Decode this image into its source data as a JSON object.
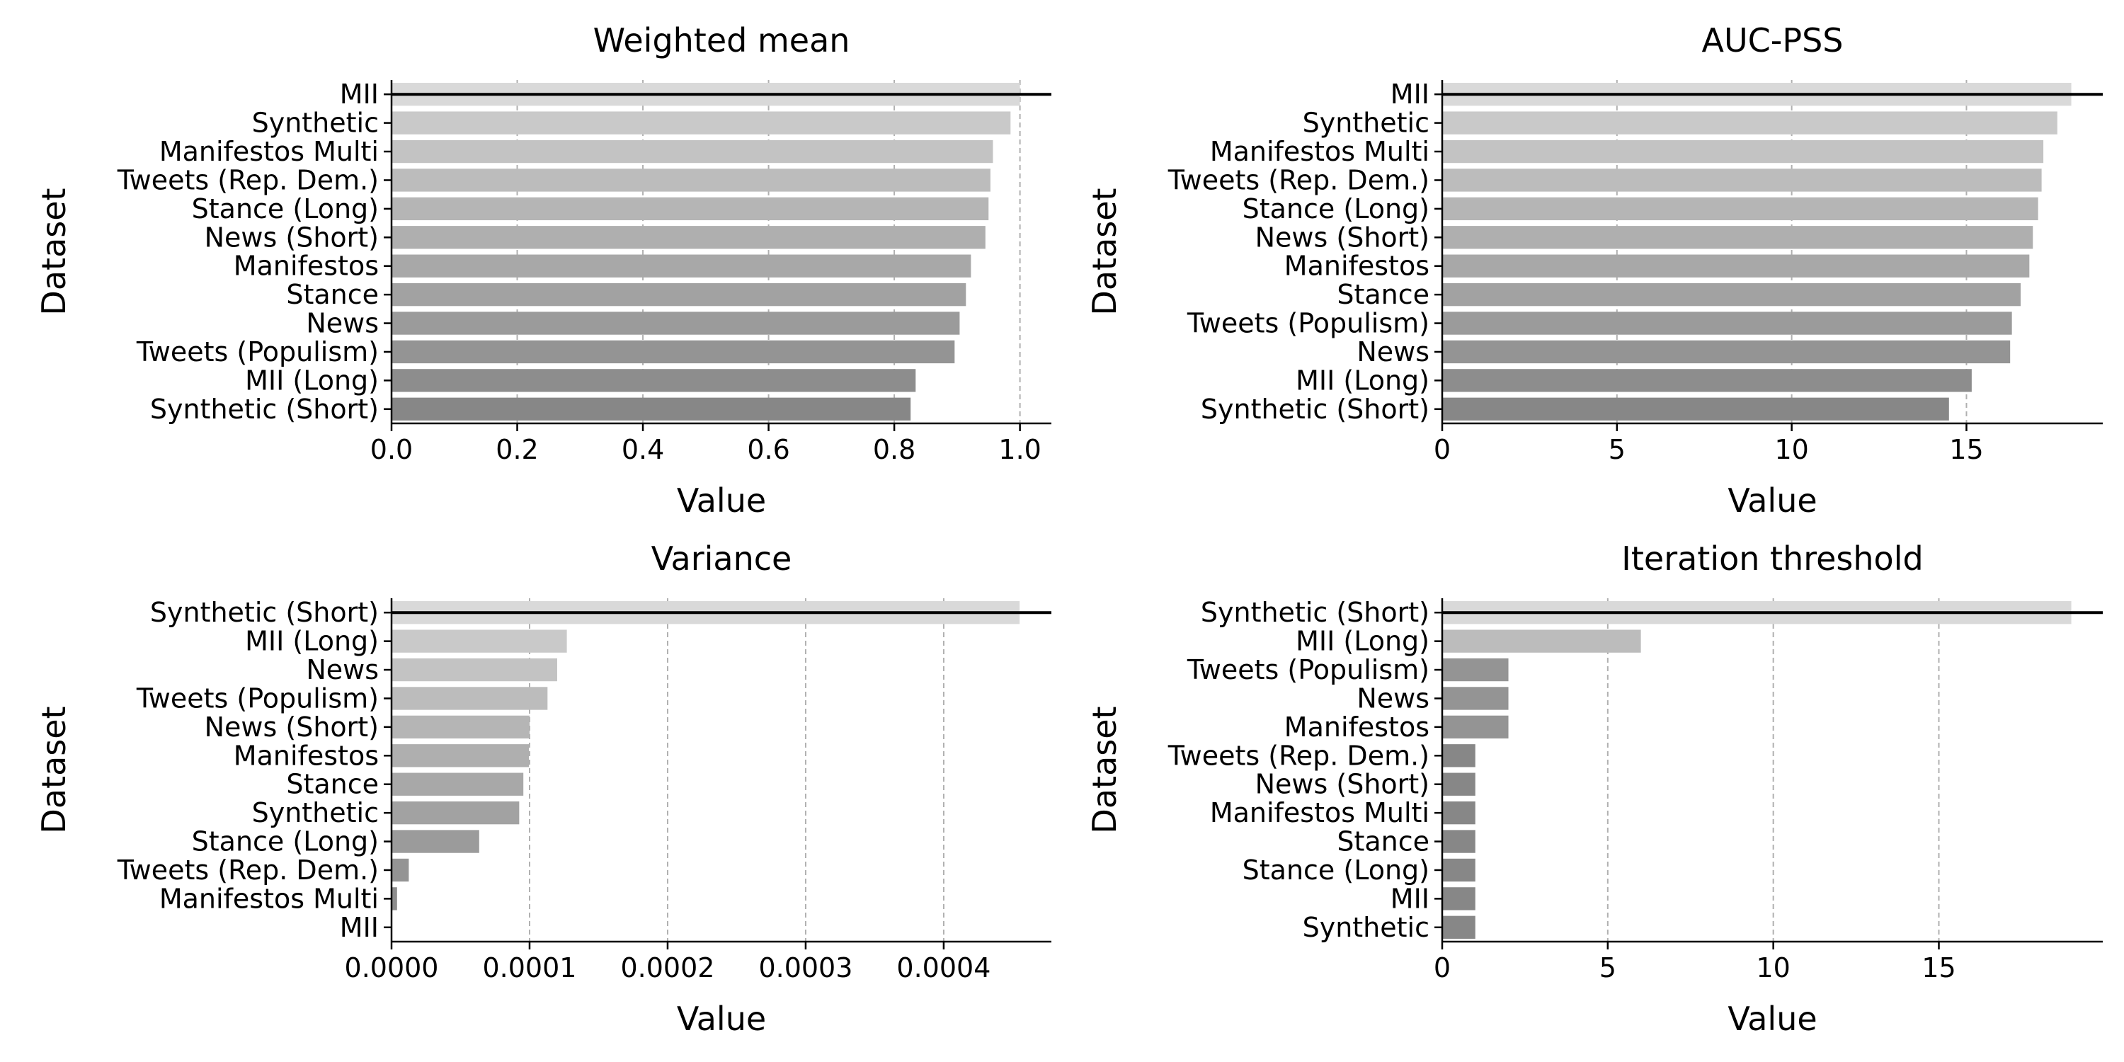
{
  "chart_data": [
    {
      "type": "bar",
      "orientation": "horizontal",
      "title": "Weighted mean",
      "xlabel": "Value",
      "ylabel": "Dataset",
      "categories": [
        "MII",
        "Synthetic",
        "Manifestos Multi",
        "Tweets (Rep. Dem.)",
        "Stance (Long)",
        "News (Short)",
        "Manifestos",
        "Stance",
        "News",
        "Tweets (Populism)",
        "MII (Long)",
        "Synthetic (Short)"
      ],
      "values": [
        1.0,
        0.985,
        0.957,
        0.953,
        0.95,
        0.945,
        0.922,
        0.914,
        0.904,
        0.896,
        0.834,
        0.826
      ],
      "xlim": [
        0,
        1.05
      ],
      "xticks": [
        0.0,
        0.2,
        0.4,
        0.6,
        0.8,
        1.0
      ],
      "xtick_labels": [
        "0.0",
        "0.2",
        "0.4",
        "0.6",
        "0.8",
        "1.0"
      ],
      "grid": "vertical dashed",
      "reference_line_at_top": true,
      "bar_colors": [
        "#d9d9d9",
        "#c9c9c9",
        "#c3c3c3",
        "#bcbcbc",
        "#b5b5b5",
        "#afafaf",
        "#a8a8a8",
        "#a2a2a2",
        "#9b9b9b",
        "#949494",
        "#8d8d8d",
        "#878787"
      ]
    },
    {
      "type": "bar",
      "orientation": "horizontal",
      "title": "AUC-PSS",
      "xlabel": "Value",
      "ylabel": "Dataset",
      "categories": [
        "MII",
        "Synthetic",
        "Manifestos Multi",
        "Tweets (Rep. Dem.)",
        "Stance (Long)",
        "News (Short)",
        "Manifestos",
        "Stance",
        "Tweets (Populism)",
        "News",
        "MII (Long)",
        "Synthetic (Short)"
      ],
      "values": [
        18.0,
        17.6,
        17.2,
        17.15,
        17.05,
        16.9,
        16.8,
        16.55,
        16.3,
        16.25,
        15.15,
        14.5
      ],
      "xlim": [
        0,
        18.9
      ],
      "xticks": [
        0,
        5,
        10,
        15
      ],
      "xtick_labels": [
        "0",
        "5",
        "10",
        "15"
      ],
      "grid": "vertical dashed",
      "reference_line_at_top": true,
      "bar_colors": [
        "#d9d9d9",
        "#c9c9c9",
        "#c3c3c3",
        "#bcbcbc",
        "#b5b5b5",
        "#afafaf",
        "#a8a8a8",
        "#a2a2a2",
        "#9b9b9b",
        "#949494",
        "#8d8d8d",
        "#878787"
      ]
    },
    {
      "type": "bar",
      "orientation": "horizontal",
      "title": "Variance",
      "xlabel": "Value",
      "ylabel": "Dataset",
      "categories": [
        "Synthetic (Short)",
        "MII (Long)",
        "News",
        "Tweets (Populism)",
        "News (Short)",
        "Manifestos",
        "Stance",
        "Synthetic",
        "Stance (Long)",
        "Tweets (Rep. Dem.)",
        "Manifestos Multi",
        "MII"
      ],
      "values": [
        0.000455,
        0.000127,
        0.00012,
        0.000113,
        0.0001,
        9.95e-05,
        9.55e-05,
        9.25e-05,
        6.35e-05,
        1.25e-05,
        4e-06,
        0.0
      ],
      "xlim": [
        0,
        0.000478
      ],
      "xticks": [
        0.0,
        0.0001,
        0.0002,
        0.0003,
        0.0004
      ],
      "xtick_labels": [
        "0.0000",
        "0.0001",
        "0.0002",
        "0.0003",
        "0.0004"
      ],
      "grid": "vertical dashed",
      "reference_line_at_top": true,
      "bar_colors": [
        "#d9d9d9",
        "#c9c9c9",
        "#c3c3c3",
        "#bcbcbc",
        "#b5b5b5",
        "#afafaf",
        "#a8a8a8",
        "#a2a2a2",
        "#9b9b9b",
        "#949494",
        "#8d8d8d",
        "#878787"
      ]
    },
    {
      "type": "bar",
      "orientation": "horizontal",
      "title": "Iteration threshold",
      "xlabel": "Value",
      "ylabel": "Dataset",
      "categories": [
        "Synthetic (Short)",
        "MII (Long)",
        "Tweets (Populism)",
        "News",
        "Manifestos",
        "Tweets (Rep. Dem.)",
        "News (Short)",
        "Manifestos Multi",
        "Stance",
        "Stance (Long)",
        "MII",
        "Synthetic"
      ],
      "values": [
        19,
        6,
        2,
        2,
        2,
        1,
        1,
        1,
        1,
        1,
        1,
        1
      ],
      "xlim": [
        0,
        19.95
      ],
      "xticks": [
        0,
        5,
        10,
        15
      ],
      "xtick_labels": [
        "0",
        "5",
        "10",
        "15"
      ],
      "grid": "vertical dashed",
      "reference_line_at_top": true,
      "bar_colors": [
        "#d9d9d9",
        "#bcbcbc",
        "#949494",
        "#949494",
        "#949494",
        "#878787",
        "#878787",
        "#878787",
        "#878787",
        "#878787",
        "#878787",
        "#878787"
      ]
    }
  ]
}
